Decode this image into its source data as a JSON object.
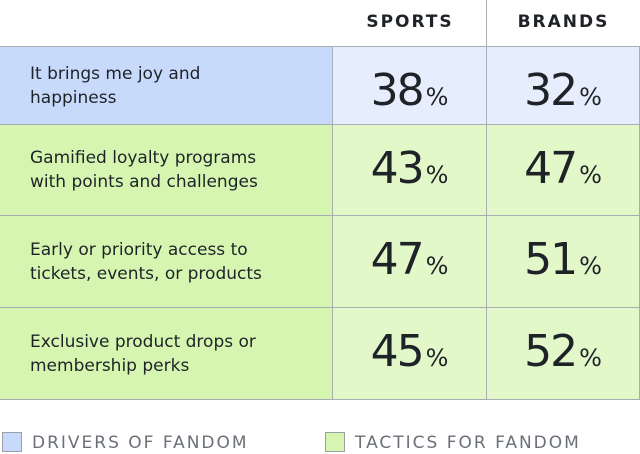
{
  "table": {
    "columns": [
      "SPORTS",
      "BRANDS"
    ],
    "unit": "%",
    "rows": [
      {
        "label": "It brings me joy and happiness",
        "group": 0,
        "values": [
          38,
          32
        ]
      },
      {
        "label": "Gamified loyalty programs with points and challenges",
        "group": 1,
        "values": [
          43,
          47
        ]
      },
      {
        "label": "Early or priority access to tickets, events, or products",
        "group": 1,
        "values": [
          47,
          51
        ]
      },
      {
        "label": "Exclusive product drops or membership perks",
        "group": 1,
        "values": [
          45,
          52
        ]
      }
    ]
  },
  "legend": [
    {
      "label": "DRIVERS OF FANDOM",
      "color": "#c8dafc",
      "cell_color": "#e6eefd"
    },
    {
      "label": "TACTICS FOR FANDOM",
      "color": "#d5f5b0",
      "cell_color": "#e3f8c8"
    }
  ]
}
